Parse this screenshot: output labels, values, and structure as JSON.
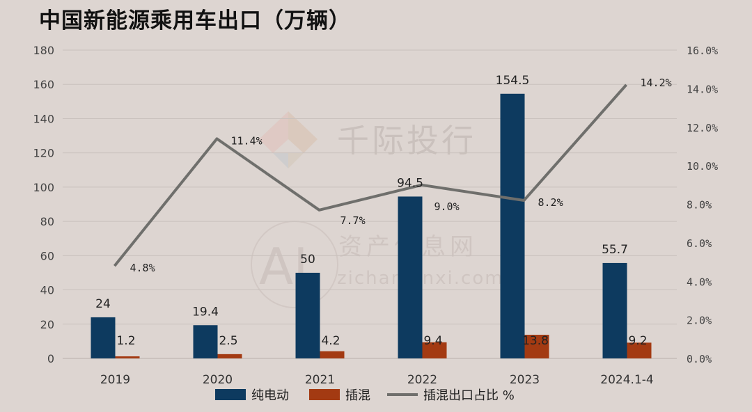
{
  "title": "中国新能源乘用车出口（万辆）",
  "watermark": {
    "brand": "千际投行",
    "site_cn": "资产信息网",
    "site_url": "zichanxinxi.com",
    "logo_text": "AI"
  },
  "colors": {
    "background": "#ddd5d1",
    "bev": "#0d3a5f",
    "phev": "#a33a12",
    "share_line": "#6f6f6c",
    "grid": "#c9c1bd"
  },
  "chart_data": {
    "type": "bar",
    "categories": [
      "2019",
      "2020",
      "2021",
      "2022",
      "2023",
      "2024.1-4"
    ],
    "series": [
      {
        "name": "纯电动",
        "type": "bar",
        "axis": "left",
        "values": [
          24,
          19.4,
          50,
          94.5,
          154.5,
          55.7
        ],
        "labels": [
          "24",
          "19.4",
          "50",
          "94.5",
          "154.5",
          "55.7"
        ]
      },
      {
        "name": "插混",
        "type": "bar",
        "axis": "left",
        "values": [
          1.2,
          2.5,
          4.2,
          9.4,
          13.8,
          9.2
        ],
        "labels": [
          "1.2",
          "2.5",
          "4.2",
          "9.4",
          "13.8",
          "9.2"
        ]
      },
      {
        "name": "插混出口占比 %",
        "type": "line",
        "axis": "right",
        "values": [
          4.8,
          11.4,
          7.7,
          9.0,
          8.2,
          14.2
        ],
        "labels": [
          "4.8%",
          "11.4%",
          "7.7%",
          "9.0%",
          "8.2%",
          "14.2%"
        ]
      }
    ],
    "y_left": {
      "min": 0,
      "max": 180,
      "ticks": [
        "0",
        "20",
        "40",
        "60",
        "80",
        "100",
        "120",
        "140",
        "160",
        "180"
      ]
    },
    "y_right": {
      "min": 0,
      "max": 16,
      "unit": "%",
      "ticks": [
        "0.0%",
        "2.0%",
        "4.0%",
        "6.0%",
        "8.0%",
        "10.0%",
        "12.0%",
        "14.0%",
        "16.0%"
      ]
    },
    "grid": true,
    "legend_position": "bottom"
  }
}
